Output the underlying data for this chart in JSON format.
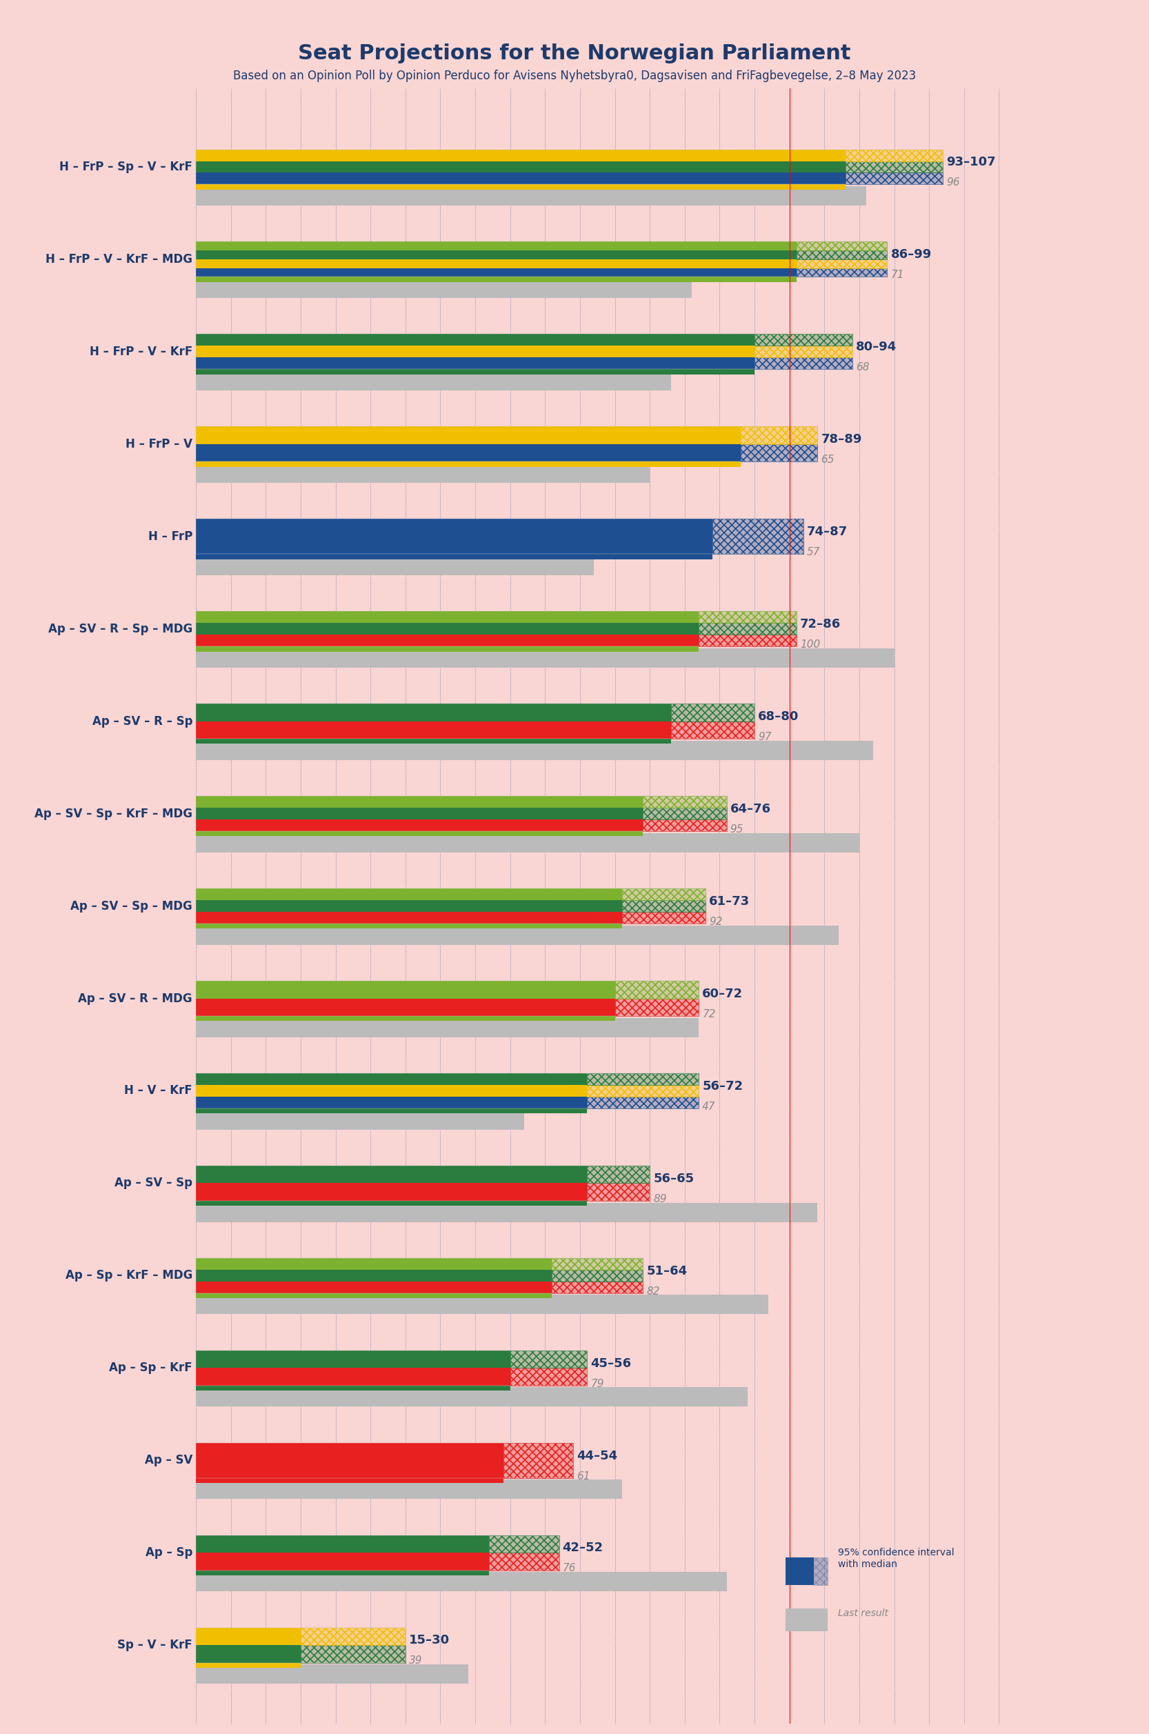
{
  "title": "Seat Projections for the Norwegian Parliament",
  "subtitle": "Based on an Opinion Poll by Opinion Perduco for Avisens Nyhetsbyra, Dagsavisen and FriFagbevegelse, 2–8 May 2023",
  "background_color": "#f9d5d3",
  "coalitions": [
    {
      "label": "H – FrP – Sp – V – KrF",
      "low": 93,
      "high": 107,
      "median": 96,
      "parties": [
        "H",
        "FrP",
        "Sp",
        "V",
        "KrF"
      ],
      "side": "right"
    },
    {
      "label": "H – FrP – V – KrF – MDG",
      "low": 86,
      "high": 99,
      "median": 71,
      "parties": [
        "H",
        "FrP",
        "V",
        "KrF",
        "MDG"
      ],
      "side": "right"
    },
    {
      "label": "H – FrP – V – KrF",
      "low": 80,
      "high": 94,
      "median": 68,
      "parties": [
        "H",
        "FrP",
        "V",
        "KrF"
      ],
      "side": "right"
    },
    {
      "label": "H – FrP – V",
      "low": 78,
      "high": 89,
      "median": 65,
      "parties": [
        "H",
        "FrP",
        "V"
      ],
      "side": "right"
    },
    {
      "label": "H – FrP",
      "low": 74,
      "high": 87,
      "median": 57,
      "parties": [
        "H",
        "FrP"
      ],
      "side": "right"
    },
    {
      "label": "Ap – SV – R – Sp – MDG",
      "low": 72,
      "high": 86,
      "median": 100,
      "parties": [
        "Ap",
        "SV",
        "R",
        "Sp",
        "MDG"
      ],
      "side": "left"
    },
    {
      "label": "Ap – SV – R – Sp",
      "low": 68,
      "high": 80,
      "median": 97,
      "parties": [
        "Ap",
        "SV",
        "R",
        "Sp"
      ],
      "side": "left"
    },
    {
      "label": "Ap – SV – Sp – KrF – MDG",
      "low": 64,
      "high": 76,
      "median": 95,
      "parties": [
        "Ap",
        "SV",
        "Sp",
        "KrF",
        "MDG"
      ],
      "side": "left"
    },
    {
      "label": "Ap – SV – Sp – MDG",
      "low": 61,
      "high": 73,
      "median": 92,
      "parties": [
        "Ap",
        "SV",
        "Sp",
        "MDG"
      ],
      "side": "left"
    },
    {
      "label": "Ap – SV – R – MDG",
      "low": 60,
      "high": 72,
      "median": 72,
      "parties": [
        "Ap",
        "SV",
        "R",
        "MDG"
      ],
      "side": "left"
    },
    {
      "label": "H – V – KrF",
      "low": 56,
      "high": 72,
      "median": 47,
      "parties": [
        "H",
        "V",
        "KrF"
      ],
      "side": "right"
    },
    {
      "label": "Ap – SV – Sp",
      "low": 56,
      "high": 65,
      "median": 89,
      "parties": [
        "Ap",
        "SV",
        "Sp"
      ],
      "side": "left"
    },
    {
      "label": "Ap – Sp – KrF – MDG",
      "low": 51,
      "high": 64,
      "median": 82,
      "parties": [
        "Ap",
        "Sp",
        "KrF",
        "MDG"
      ],
      "side": "left"
    },
    {
      "label": "Ap – Sp – KrF",
      "low": 45,
      "high": 56,
      "median": 79,
      "parties": [
        "Ap",
        "Sp",
        "KrF"
      ],
      "side": "left"
    },
    {
      "label": "Ap – SV",
      "low": 44,
      "high": 54,
      "median": 61,
      "parties": [
        "Ap",
        "SV"
      ],
      "side": "left"
    },
    {
      "label": "Ap – Sp",
      "low": 42,
      "high": 52,
      "median": 76,
      "parties": [
        "Ap",
        "Sp"
      ],
      "side": "left"
    },
    {
      "label": "Sp – V – KrF",
      "low": 15,
      "high": 30,
      "median": 39,
      "parties": [
        "Sp",
        "V",
        "KrF"
      ],
      "side": "left"
    }
  ],
  "party_colors": {
    "H": "#1f4e96",
    "FrP": "#1f4e96",
    "Sp": "#2d8b3e",
    "V": "#f5c800",
    "KrF": "#2d8b3e",
    "MDG": "#8db23a",
    "Ap": "#e8231b",
    "SV": "#e8231b",
    "R": "#e8231b"
  },
  "majority_line": 85,
  "x_max": 115,
  "x_min": 0
}
